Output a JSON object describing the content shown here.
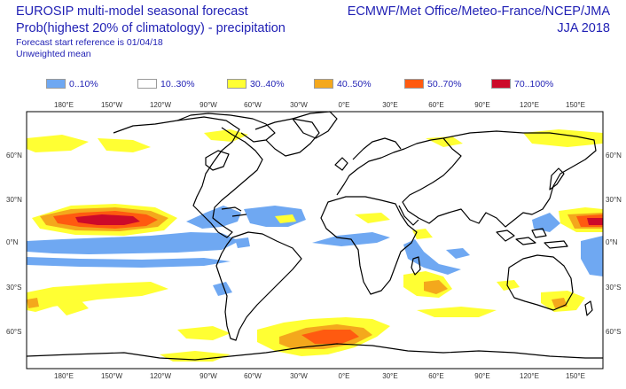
{
  "header": {
    "title": "EUROSIP multi-model seasonal forecast",
    "subtitle": "Prob(highest 20% of climatology) - precipitation",
    "start_ref": "Forecast start reference is 01/04/18",
    "mean": "Unweighted mean",
    "centres": "ECMWF/Met Office/Meteo-France/NCEP/JMA",
    "season": "JJA 2018"
  },
  "legend": [
    {
      "label": "0..10%",
      "color": "#6fa8f2"
    },
    {
      "label": "10..30%",
      "color": "#ffffff"
    },
    {
      "label": "30..40%",
      "color": "#ffff33"
    },
    {
      "label": "40..50%",
      "color": "#f4a81c"
    },
    {
      "label": "50..70%",
      "color": "#ff5a10"
    },
    {
      "label": "70..100%",
      "color": "#cc0a2a"
    }
  ],
  "map": {
    "lon_labels": [
      "180°E",
      "150°W",
      "120°W",
      "90°W",
      "60°W",
      "30°W",
      "0°E",
      "30°E",
      "60°E",
      "90°E",
      "120°E",
      "150°E"
    ],
    "lat_labels": [
      "60°N",
      "30°N",
      "0°N",
      "30°S",
      "60°S"
    ]
  }
}
